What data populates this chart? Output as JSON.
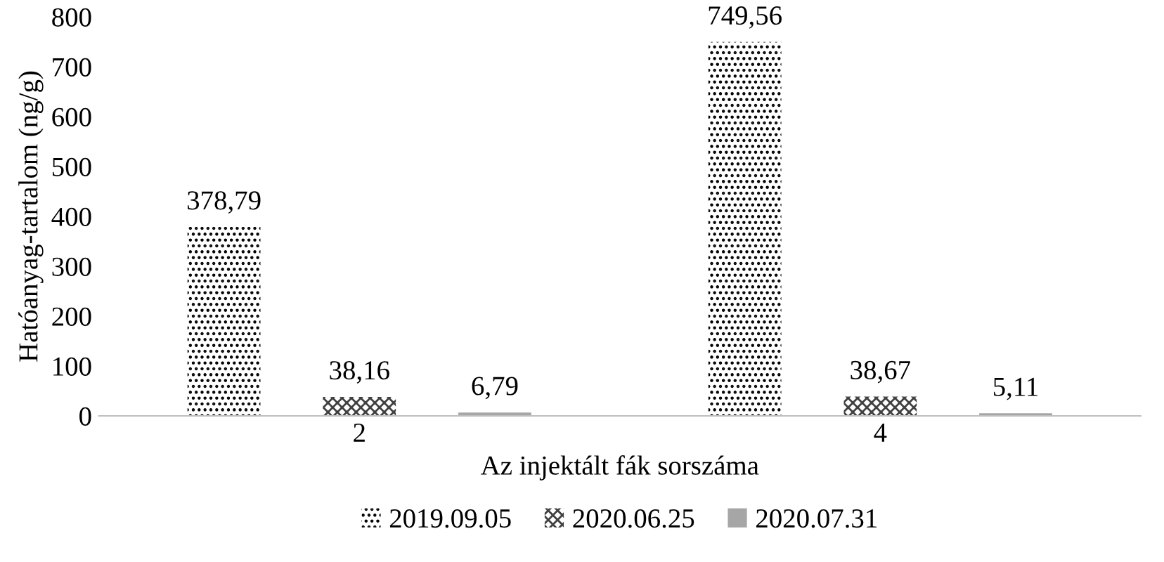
{
  "chart_data": {
    "type": "bar",
    "xlabel": "Az injektált fák sorszáma",
    "ylabel": "Hatóanyag-tartalom (ng/g)",
    "categories": [
      "2",
      "4"
    ],
    "series": [
      {
        "name": "2019.09.05",
        "color": "#000000",
        "values": [
          378.79,
          749.56
        ],
        "value_labels": [
          "378,79",
          "749,56"
        ]
      },
      {
        "name": "2020.06.25",
        "color": "#404040",
        "values": [
          38.16,
          38.67
        ],
        "value_labels": [
          "38,16",
          "38,67"
        ]
      },
      {
        "name": "2020.07.31",
        "color": "#a6a6a6",
        "values": [
          6.79,
          5.11
        ],
        "value_labels": [
          "6,79",
          "5,11"
        ]
      }
    ],
    "ylim": [
      0,
      800
    ],
    "yticks": [
      0,
      100,
      200,
      300,
      400,
      500,
      600,
      700,
      800
    ],
    "grid": false,
    "legend": "bottom"
  }
}
